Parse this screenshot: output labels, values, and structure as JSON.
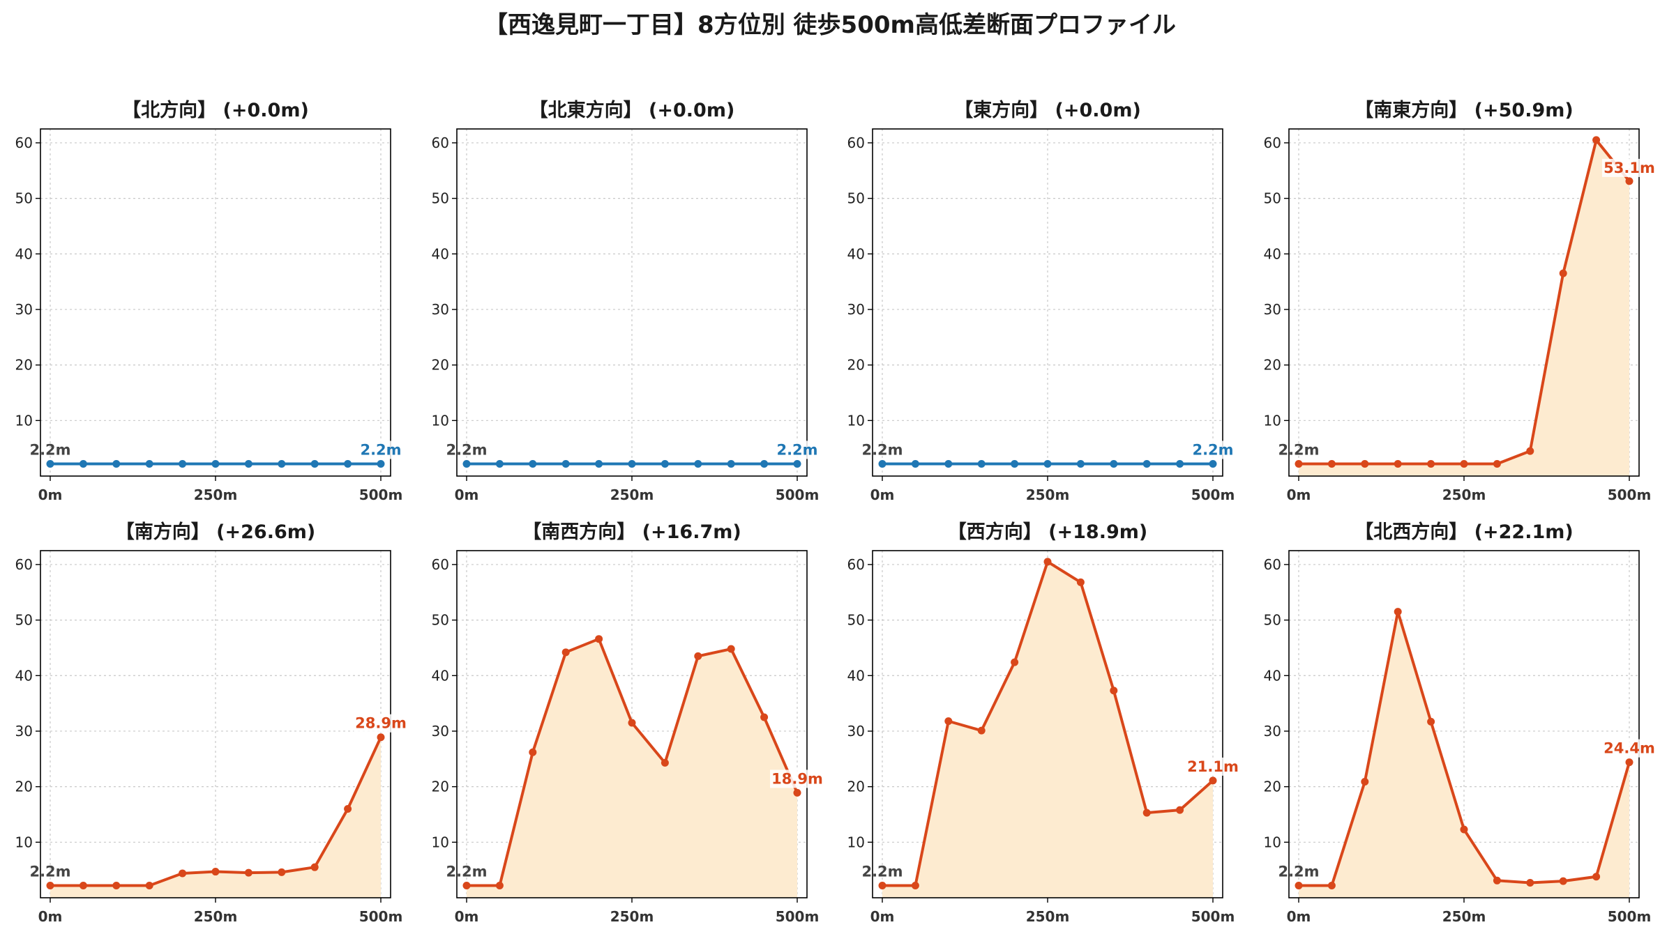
{
  "title": "【西逸見町一丁目】8方位別 徒歩500m高低差断面プロファイル",
  "colors": {
    "flat": "#1f77b4",
    "uphill": "#d9471a",
    "fill": "#fdebd0",
    "grid": "#c8c8c8",
    "start_label": "#444444"
  },
  "chart_data": [
    {
      "type": "line",
      "title": "【北方向】 (+0.0m)",
      "x": [
        0,
        50,
        100,
        150,
        200,
        250,
        300,
        350,
        400,
        450,
        500
      ],
      "values": [
        2.2,
        2.2,
        2.2,
        2.2,
        2.2,
        2.2,
        2.2,
        2.2,
        2.2,
        2.2,
        2.2
      ],
      "start_label": "2.2m",
      "end_label": "2.2m",
      "style": "flat",
      "xticks": [
        "0m",
        "250m",
        "500m"
      ],
      "yticks": [
        10,
        20,
        30,
        40,
        50,
        60
      ],
      "ylim": [
        0,
        62.5
      ],
      "xlim": [
        0,
        500
      ],
      "grid": true
    },
    {
      "type": "line",
      "title": "【北東方向】 (+0.0m)",
      "x": [
        0,
        50,
        100,
        150,
        200,
        250,
        300,
        350,
        400,
        450,
        500
      ],
      "values": [
        2.2,
        2.2,
        2.2,
        2.2,
        2.2,
        2.2,
        2.2,
        2.2,
        2.2,
        2.2,
        2.2
      ],
      "start_label": "2.2m",
      "end_label": "2.2m",
      "style": "flat",
      "xticks": [
        "0m",
        "250m",
        "500m"
      ],
      "yticks": [
        10,
        20,
        30,
        40,
        50,
        60
      ],
      "ylim": [
        0,
        62.5
      ],
      "xlim": [
        0,
        500
      ],
      "grid": true
    },
    {
      "type": "line",
      "title": "【東方向】 (+0.0m)",
      "x": [
        0,
        50,
        100,
        150,
        200,
        250,
        300,
        350,
        400,
        450,
        500
      ],
      "values": [
        2.2,
        2.2,
        2.2,
        2.2,
        2.2,
        2.2,
        2.2,
        2.2,
        2.2,
        2.2,
        2.2
      ],
      "start_label": "2.2m",
      "end_label": "2.2m",
      "style": "flat",
      "xticks": [
        "0m",
        "250m",
        "500m"
      ],
      "yticks": [
        10,
        20,
        30,
        40,
        50,
        60
      ],
      "ylim": [
        0,
        62.5
      ],
      "xlim": [
        0,
        500
      ],
      "grid": true
    },
    {
      "type": "area",
      "title": "【南東方向】 (+50.9m)",
      "x": [
        0,
        50,
        100,
        150,
        200,
        250,
        300,
        350,
        400,
        450,
        500
      ],
      "values": [
        2.2,
        2.2,
        2.2,
        2.2,
        2.2,
        2.2,
        2.2,
        4.5,
        36.5,
        60.5,
        53.1
      ],
      "start_label": "2.2m",
      "end_label": "53.1m",
      "style": "uphill",
      "xticks": [
        "0m",
        "250m",
        "500m"
      ],
      "yticks": [
        10,
        20,
        30,
        40,
        50,
        60
      ],
      "ylim": [
        0,
        62.5
      ],
      "xlim": [
        0,
        500
      ],
      "grid": true
    },
    {
      "type": "area",
      "title": "【南方向】 (+26.6m)",
      "x": [
        0,
        50,
        100,
        150,
        200,
        250,
        300,
        350,
        400,
        450,
        500
      ],
      "values": [
        2.2,
        2.2,
        2.2,
        2.2,
        4.4,
        4.7,
        4.5,
        4.6,
        5.5,
        16.0,
        28.9
      ],
      "start_label": "2.2m",
      "end_label": "28.9m",
      "style": "uphill",
      "xticks": [
        "0m",
        "250m",
        "500m"
      ],
      "yticks": [
        10,
        20,
        30,
        40,
        50,
        60
      ],
      "ylim": [
        0,
        62.5
      ],
      "xlim": [
        0,
        500
      ],
      "grid": true
    },
    {
      "type": "area",
      "title": "【南西方向】 (+16.7m)",
      "x": [
        0,
        50,
        100,
        150,
        200,
        250,
        300,
        350,
        400,
        450,
        500
      ],
      "values": [
        2.2,
        2.2,
        26.2,
        44.2,
        46.6,
        31.5,
        24.3,
        43.5,
        44.8,
        32.5,
        18.9
      ],
      "start_label": "2.2m",
      "end_label": "18.9m",
      "style": "uphill",
      "xticks": [
        "0m",
        "250m",
        "500m"
      ],
      "yticks": [
        10,
        20,
        30,
        40,
        50,
        60
      ],
      "ylim": [
        0,
        62.5
      ],
      "xlim": [
        0,
        500
      ],
      "grid": true
    },
    {
      "type": "area",
      "title": "【西方向】 (+18.9m)",
      "x": [
        0,
        50,
        100,
        150,
        200,
        250,
        300,
        350,
        400,
        450,
        500
      ],
      "values": [
        2.2,
        2.2,
        31.8,
        30.1,
        42.4,
        60.5,
        56.8,
        37.3,
        15.3,
        15.8,
        21.1
      ],
      "start_label": "2.2m",
      "end_label": "21.1m",
      "style": "uphill",
      "xticks": [
        "0m",
        "250m",
        "500m"
      ],
      "yticks": [
        10,
        20,
        30,
        40,
        50,
        60
      ],
      "ylim": [
        0,
        62.5
      ],
      "xlim": [
        0,
        500
      ],
      "grid": true
    },
    {
      "type": "area",
      "title": "【北西方向】 (+22.1m)",
      "x": [
        0,
        50,
        100,
        150,
        200,
        250,
        300,
        350,
        400,
        450,
        500
      ],
      "values": [
        2.2,
        2.2,
        20.9,
        51.5,
        31.7,
        12.3,
        3.1,
        2.7,
        3.0,
        3.8,
        24.4
      ],
      "start_label": "2.2m",
      "end_label": "24.4m",
      "style": "uphill",
      "xticks": [
        "0m",
        "250m",
        "500m"
      ],
      "yticks": [
        10,
        20,
        30,
        40,
        50,
        60
      ],
      "ylim": [
        0,
        62.5
      ],
      "xlim": [
        0,
        500
      ],
      "grid": true
    }
  ]
}
